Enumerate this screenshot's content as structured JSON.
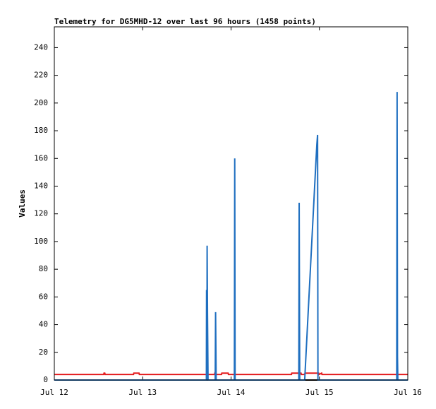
{
  "chart_data": {
    "type": "line",
    "title": "Telemetry for DG5MHD-12 over last 96 hours (1458 points)",
    "ylabel": "Values",
    "xlim": [
      0,
      96
    ],
    "ylim": [
      0,
      255
    ],
    "xticks": [
      {
        "value": 0,
        "label": "Jul 12"
      },
      {
        "value": 24,
        "label": "Jul 13"
      },
      {
        "value": 48,
        "label": "Jul 14"
      },
      {
        "value": 72,
        "label": "Jul 15"
      },
      {
        "value": 96,
        "label": "Jul 16"
      }
    ],
    "yticks": [
      0,
      20,
      40,
      60,
      80,
      100,
      120,
      140,
      160,
      180,
      200,
      220,
      240
    ],
    "series": [
      {
        "color": "#000000",
        "x": [
          0,
          96
        ],
        "values": [
          0,
          0
        ]
      },
      {
        "color": "#e41a1c",
        "x": [
          0,
          13.4,
          13.5,
          13.7,
          13.8,
          21.5,
          21.6,
          23,
          23.1,
          43.5,
          43.6,
          44,
          45.4,
          45.5,
          47.2,
          47.3,
          64.4,
          64.5,
          67,
          67.1,
          68,
          68.1,
          71.8,
          71.9,
          72.6,
          72.7,
          96
        ],
        "values": [
          4,
          4,
          5,
          5,
          4,
          4,
          5,
          5,
          4,
          4,
          5,
          4,
          4,
          5,
          5,
          4,
          4,
          5,
          5,
          4,
          4,
          5,
          5,
          4,
          5,
          4,
          4
        ]
      },
      {
        "color": "#1f6fc0",
        "x": [
          0,
          41.3,
          41.35,
          41.45,
          41.5,
          41.6,
          41.75,
          43.7,
          43.8,
          43.95,
          48.9,
          49.0,
          49.1,
          66.4,
          66.5,
          66.65,
          68.0,
          71.0,
          71.3,
          71.5,
          71.6,
          93.0,
          93.1,
          93.2,
          93.3,
          96
        ],
        "values": [
          0,
          0,
          65,
          0,
          97,
          48,
          0,
          0,
          49,
          0,
          0,
          160,
          0,
          0,
          128,
          0,
          0,
          155,
          170,
          177,
          0,
          0,
          208,
          17,
          0,
          0
        ]
      }
    ]
  }
}
